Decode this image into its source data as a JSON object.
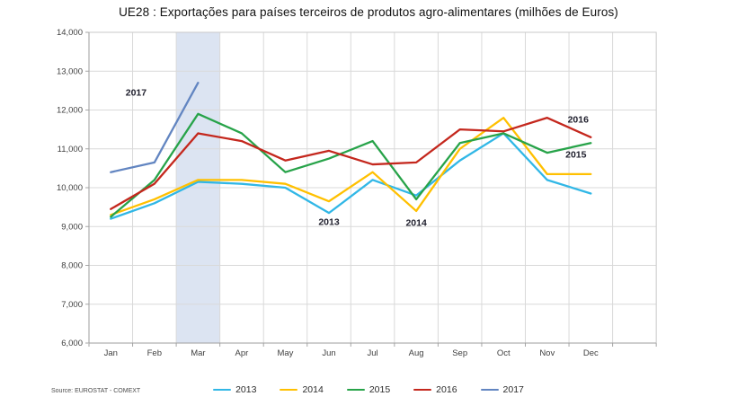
{
  "title": "UE28 : Exportações para países terceiros de produtos agro-alimentares (milhões de Euros)",
  "source": "Source: EUROSTAT - COMEXT",
  "chart_data": {
    "type": "line",
    "categories": [
      "Jan",
      "Feb",
      "Mar",
      "Apr",
      "May",
      "Jun",
      "Jul",
      "Aug",
      "Sep",
      "Oct",
      "Nov",
      "Dec"
    ],
    "series": [
      {
        "name": "2013",
        "color": "#31B7E6",
        "values": [
          9200,
          9600,
          10150,
          10100,
          10000,
          9350,
          10200,
          9800,
          10700,
          11400,
          10200,
          9850
        ]
      },
      {
        "name": "2014",
        "color": "#FFC000",
        "values": [
          9300,
          9700,
          10200,
          10200,
          10100,
          9650,
          10400,
          9400,
          11000,
          11800,
          10350,
          10350
        ]
      },
      {
        "name": "2015",
        "color": "#27A349",
        "values": [
          9250,
          10200,
          11900,
          11400,
          10400,
          10750,
          11200,
          9700,
          11150,
          11400,
          10900,
          11150
        ]
      },
      {
        "name": "2016",
        "color": "#C4271D",
        "values": [
          9450,
          10100,
          11400,
          11200,
          10700,
          10950,
          10600,
          10650,
          11500,
          11450,
          11800,
          11300
        ]
      },
      {
        "name": "2017",
        "color": "#6285C1",
        "values": [
          10400,
          10650,
          12700
        ]
      }
    ],
    "ylabel": "",
    "xlabel": "",
    "ylim": [
      6000,
      14000
    ],
    "ytick_step": 1000,
    "ytick_labels": [
      "6,000",
      "7,000",
      "8,000",
      "9,000",
      "10,000",
      "11,000",
      "12,000",
      "13,000",
      "14,000"
    ],
    "grid": true,
    "legend_position": "bottom",
    "highlight_band": {
      "category": "Mar",
      "color": "#DCE4F2"
    },
    "annotations": [
      {
        "text": "2017",
        "month": 0.58,
        "value": 12450
      },
      {
        "text": "2013",
        "month": 5.0,
        "value": 9120
      },
      {
        "text": "2014",
        "month": 7.0,
        "value": 9100
      },
      {
        "text": "2015",
        "month": 10.66,
        "value": 10860
      },
      {
        "text": "2016",
        "month": 10.71,
        "value": 11760
      }
    ]
  }
}
